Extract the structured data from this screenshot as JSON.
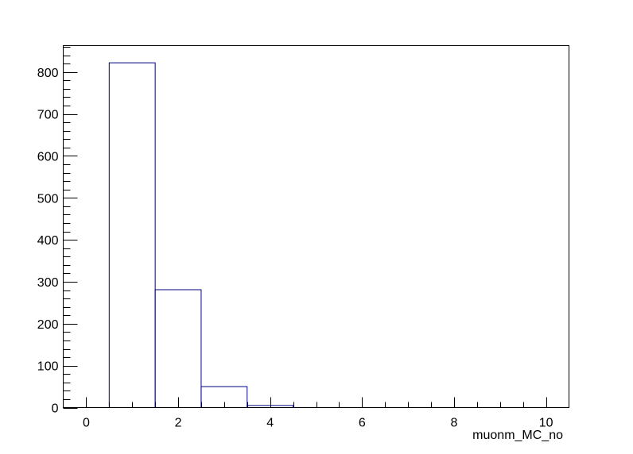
{
  "chart_data": {
    "type": "bar",
    "histogram": true,
    "bin_edges": [
      0.5,
      1.5,
      2.5,
      3.5,
      4.5
    ],
    "values": [
      822,
      281,
      50,
      5
    ],
    "xlabel": "muonm_MC_no",
    "ylabel": "",
    "xlim": [
      -0.5,
      10.5
    ],
    "ylim": [
      0,
      863
    ],
    "x_ticks": [
      0,
      2,
      4,
      6,
      8,
      10
    ],
    "x_tick_labels": [
      "0",
      "2",
      "4",
      "6",
      "8",
      "10"
    ],
    "y_ticks": [
      0,
      100,
      200,
      300,
      400,
      500,
      600,
      700,
      800
    ],
    "y_tick_labels": [
      "0",
      "100",
      "200",
      "300",
      "400",
      "500",
      "600",
      "700",
      "800"
    ],
    "grid": false,
    "colors": {
      "line": "#000080",
      "axis": "#000000",
      "background": "#ffffff"
    }
  }
}
